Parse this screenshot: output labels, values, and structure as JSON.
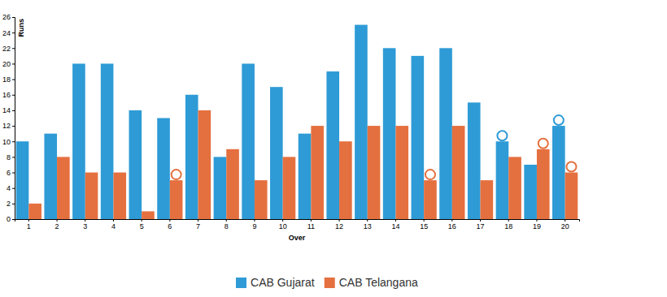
{
  "chart_data": {
    "type": "bar",
    "x_label": "Over",
    "y_label": "Runs",
    "categories": [
      "1",
      "2",
      "3",
      "4",
      "5",
      "6",
      "7",
      "8",
      "9",
      "10",
      "11",
      "12",
      "13",
      "14",
      "15",
      "16",
      "17",
      "18",
      "19",
      "20"
    ],
    "series": [
      {
        "name": "CAB Gujarat",
        "color": "#2e9bd6",
        "values": [
          10,
          11,
          20,
          20,
          14,
          13,
          16,
          8,
          20,
          17,
          11,
          19,
          25,
          22,
          21,
          22,
          15,
          10,
          7,
          12
        ],
        "wickets": [
          0,
          0,
          0,
          0,
          0,
          0,
          0,
          0,
          0,
          0,
          0,
          0,
          0,
          0,
          0,
          0,
          0,
          1,
          0,
          1
        ]
      },
      {
        "name": "CAB Telangana",
        "color": "#e5703f",
        "values": [
          2,
          8,
          6,
          6,
          1,
          5,
          14,
          9,
          5,
          8,
          12,
          10,
          12,
          12,
          5,
          12,
          5,
          8,
          9,
          6
        ],
        "wickets": [
          0,
          0,
          0,
          0,
          0,
          1,
          0,
          0,
          0,
          0,
          0,
          0,
          0,
          0,
          1,
          0,
          0,
          0,
          1,
          1
        ]
      }
    ],
    "ylim": [
      0,
      26
    ],
    "yticks": [
      0,
      2,
      4,
      6,
      8,
      10,
      12,
      14,
      16,
      18,
      20,
      22,
      24,
      26
    ],
    "grid": false,
    "legend": "bottom",
    "marker": "circle"
  }
}
